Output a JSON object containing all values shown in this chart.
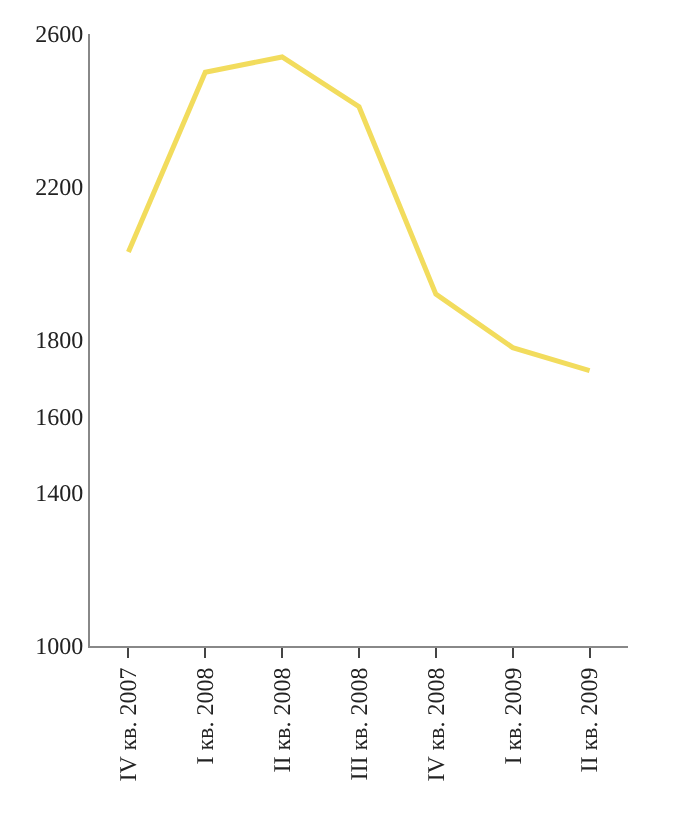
{
  "chart_data": {
    "type": "line",
    "categories": [
      "IV кв. 2007",
      "I кв. 2008",
      "II кв. 2008",
      "III кв. 2008",
      "IV кв. 2008",
      "I кв. 2009",
      "II кв. 2009"
    ],
    "series": [
      {
        "color": "#f2dc5d",
        "values": [
          2030,
          2500,
          2540,
          2410,
          1920,
          1780,
          1720
        ]
      }
    ],
    "ylim": [
      1000,
      2600
    ],
    "yticks": [
      1000,
      1400,
      1600,
      1800,
      2200,
      2600
    ],
    "marker": "none",
    "line_style": "solid"
  }
}
